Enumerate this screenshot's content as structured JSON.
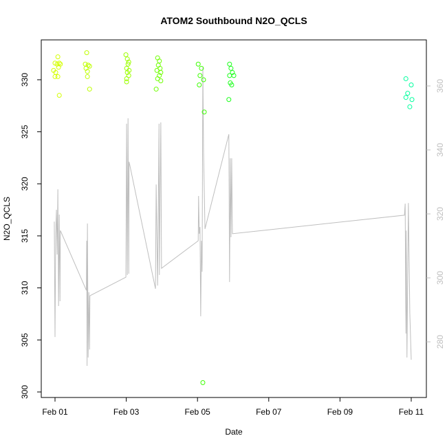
{
  "chart_data": {
    "type": "scatter",
    "title": "ATOM2 Southbound N2O_QCLS",
    "xlabel": "Date",
    "ylabel": "N2O_QCLS",
    "xlim": [
      -0.386,
      10.425
    ],
    "ylim": [
      299.47,
      333.83
    ],
    "y2lim": [
      262.6,
      374.4
    ],
    "xticks": [
      {
        "value": 0,
        "label": "Feb 01"
      },
      {
        "value": 2,
        "label": "Feb 03"
      },
      {
        "value": 4,
        "label": "Feb 05"
      },
      {
        "value": 6,
        "label": "Feb 07"
      },
      {
        "value": 8,
        "label": "Feb 09"
      },
      {
        "value": 10,
        "label": "Feb 11"
      }
    ],
    "yticks": [
      300,
      305,
      310,
      315,
      320,
      325,
      330
    ],
    "y2ticks": [
      280,
      300,
      320,
      340,
      360
    ],
    "y2color": "#bebebe",
    "series": [
      {
        "type": "line",
        "axis": "y2",
        "color": "#bebebe",
        "x": [
          -0.02,
          0.0,
          0.02,
          0.04,
          0.06,
          0.08,
          0.1,
          0.12,
          0.14,
          0.15,
          0.88,
          0.89,
          0.9,
          0.91,
          0.93,
          0.95,
          0.97,
          0.98,
          1.99,
          2.01,
          2.03,
          2.05,
          2.07,
          2.08,
          2.82,
          2.84,
          2.88,
          2.92,
          2.93,
          2.97,
          2.99,
          4.02,
          4.03,
          4.05,
          4.07,
          4.09,
          4.11,
          4.13,
          4.15,
          4.17,
          4.21,
          4.88,
          4.9,
          4.92,
          4.94,
          4.96,
          4.98,
          9.81,
          9.83,
          9.85,
          9.86,
          9.88,
          9.92,
          9.96,
          10.0
        ],
        "values": [
          317.6,
          281.5,
          313.8,
          321.3,
          307.3,
          327.7,
          291.2,
          319.8,
          292.7,
          314.8,
          296.1,
          311.6,
          272.5,
          317.0,
          275.1,
          295.5,
          277.6,
          294.4,
          300.2,
          348.2,
          300.9,
          349.9,
          301.3,
          336.3,
          296.6,
          329.2,
          297.6,
          348.2,
          300.9,
          348.6,
          303.0,
          311.6,
          325.6,
          313.8,
          315.9,
          288.0,
          311.6,
          301.9,
          365.8,
          339.6,
          315.3,
          344.9,
          298.7,
          337.4,
          312.7,
          337.4,
          313.8,
          319.6,
          323.2,
          282.6,
          314.8,
          275.1,
          323.4,
          289.0,
          274.4
        ]
      },
      {
        "type": "scatter",
        "color": "#d4ff00",
        "x": [
          0.08,
          0.0,
          0.06,
          0.12,
          0.15,
          -0.04,
          0.02,
          0.1,
          0.0,
          0.08,
          0.12
        ],
        "values": [
          332.2,
          331.6,
          331.5,
          331.6,
          331.5,
          330.9,
          330.7,
          331.2,
          330.3,
          330.3,
          328.5
        ]
      },
      {
        "type": "scatter",
        "color": "#bfff00",
        "x": [
          0.89,
          0.85,
          0.93,
          0.97,
          0.87,
          0.91,
          0.91,
          0.97
        ],
        "values": [
          332.6,
          331.5,
          331.4,
          331.3,
          331.1,
          330.8,
          330.3,
          329.1
        ]
      },
      {
        "type": "scatter",
        "color": "#9cff00",
        "x": [
          1.99,
          2.03,
          2.07,
          2.05,
          2.01,
          2.08,
          2.03,
          2.07,
          2.01,
          2.01
        ],
        "values": [
          332.4,
          332.0,
          331.7,
          331.5,
          331.1,
          330.9,
          330.7,
          330.4,
          330.1,
          329.8
        ]
      },
      {
        "type": "scatter",
        "color": "#6fff00",
        "x": [
          2.88,
          2.93,
          2.9,
          2.95,
          2.86,
          2.97,
          2.93,
          2.88,
          2.97,
          2.84
        ],
        "values": [
          332.1,
          331.8,
          331.4,
          331.1,
          330.9,
          330.7,
          330.4,
          330.1,
          329.9,
          329.1
        ]
      },
      {
        "type": "scatter",
        "color": "#3cff00",
        "x": [
          4.02,
          4.11,
          4.07,
          4.17,
          4.05,
          4.19,
          4.15
        ],
        "values": [
          331.5,
          331.1,
          330.4,
          330.0,
          329.5,
          326.9,
          300.9
        ]
      },
      {
        "type": "scatter",
        "color": "#1aff1a",
        "x": [
          4.9,
          4.94,
          4.98,
          4.9,
          5.02,
          4.92,
          4.96,
          4.88
        ],
        "values": [
          331.5,
          331.1,
          330.7,
          330.4,
          330.4,
          329.7,
          329.5,
          328.1
        ]
      },
      {
        "type": "scatter",
        "color": "#00ff9e",
        "x": [
          9.85,
          10.0,
          9.9,
          9.85,
          10.02,
          9.96
        ],
        "values": [
          330.1,
          329.5,
          328.7,
          328.3,
          328.1,
          327.4
        ]
      }
    ]
  }
}
